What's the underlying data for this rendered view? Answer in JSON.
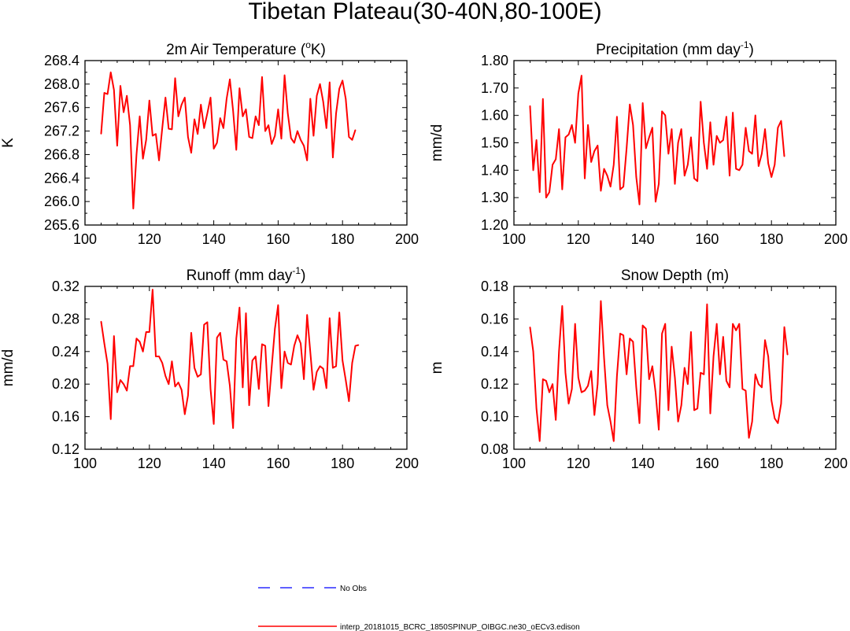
{
  "page": {
    "title": "Tibetan Plateau(30-40N,80-100E)"
  },
  "legend": {
    "entries": [
      {
        "label": "No Obs",
        "color": "#0000ff",
        "dash": true
      },
      {
        "label": "interp_20181015_BCRC_1850SPINUP_OIBGC.ne30_oECv3.edison",
        "color": "#ff0000",
        "dash": false
      }
    ]
  },
  "chart_data": [
    {
      "type": "line",
      "title": "2m Air Temperature (",
      "title_sup": "o",
      "title_tail": "K)",
      "ylabel": "K",
      "xlim": [
        100,
        200
      ],
      "ylim": [
        265.6,
        268.4
      ],
      "xticks": [
        100,
        120,
        140,
        160,
        180,
        200
      ],
      "yticks": [
        "265.6",
        "266.0",
        "266.4",
        "266.8",
        "267.2",
        "267.6",
        "268.0",
        "268.4"
      ],
      "x_start": 105,
      "color": "#ff0000",
      "values": [
        267.15,
        267.85,
        267.83,
        268.2,
        267.9,
        266.95,
        267.97,
        267.52,
        267.8,
        267.3,
        265.88,
        266.8,
        267.45,
        266.73,
        267.05,
        267.72,
        267.12,
        267.15,
        266.7,
        267.25,
        267.77,
        267.24,
        267.23,
        268.1,
        267.45,
        267.65,
        267.77,
        267.1,
        266.83,
        267.4,
        267.15,
        267.65,
        267.25,
        267.5,
        267.77,
        266.9,
        267.0,
        267.42,
        267.25,
        267.75,
        268.08,
        267.55,
        266.88,
        267.93,
        267.45,
        267.57,
        267.1,
        267.08,
        267.45,
        267.3,
        268.12,
        267.2,
        267.3,
        266.98,
        267.12,
        267.57,
        267.07,
        268.15,
        267.5,
        267.08,
        267.0,
        267.2,
        267.05,
        266.95,
        266.7,
        267.75,
        267.12,
        267.8,
        268.0,
        267.7,
        267.25,
        268.03,
        266.75,
        267.5,
        267.92,
        268.06,
        267.75,
        267.1,
        267.05,
        267.22
      ]
    },
    {
      "type": "line",
      "title": "Precipitation (mm day",
      "title_sup": "-1",
      "title_tail": ")",
      "ylabel": "mm/d",
      "xlim": [
        100,
        200
      ],
      "ylim": [
        1.2,
        1.8
      ],
      "xticks": [
        100,
        120,
        140,
        160,
        180,
        200
      ],
      "yticks": [
        "1.20",
        "1.30",
        "1.40",
        "1.50",
        "1.60",
        "1.70",
        "1.80"
      ],
      "x_start": 105,
      "color": "#ff0000",
      "values": [
        1.635,
        1.4,
        1.51,
        1.32,
        1.66,
        1.3,
        1.32,
        1.42,
        1.44,
        1.55,
        1.33,
        1.52,
        1.53,
        1.565,
        1.5,
        1.68,
        1.745,
        1.37,
        1.565,
        1.43,
        1.47,
        1.49,
        1.325,
        1.405,
        1.38,
        1.34,
        1.42,
        1.595,
        1.33,
        1.34,
        1.48,
        1.64,
        1.565,
        1.375,
        1.275,
        1.645,
        1.48,
        1.52,
        1.555,
        1.285,
        1.35,
        1.615,
        1.6,
        1.46,
        1.55,
        1.35,
        1.5,
        1.55,
        1.38,
        1.42,
        1.52,
        1.37,
        1.36,
        1.65,
        1.5,
        1.405,
        1.575,
        1.42,
        1.525,
        1.5,
        1.51,
        1.595,
        1.38,
        1.61,
        1.405,
        1.4,
        1.42,
        1.555,
        1.47,
        1.46,
        1.6,
        1.415,
        1.46,
        1.55,
        1.425,
        1.375,
        1.42,
        1.555,
        1.58,
        1.45
      ]
    },
    {
      "type": "line",
      "title": "Runoff (mm day",
      "title_sup": "-1",
      "title_tail": ")",
      "ylabel": "mm/d",
      "xlim": [
        100,
        200
      ],
      "ylim": [
        0.12,
        0.32
      ],
      "xticks": [
        100,
        120,
        140,
        160,
        180,
        200
      ],
      "yticks": [
        "0.12",
        "0.16",
        "0.20",
        "0.24",
        "0.28",
        "0.32"
      ],
      "x_start": 105,
      "color": "#ff0000",
      "values": [
        0.277,
        0.25,
        0.225,
        0.157,
        0.259,
        0.19,
        0.205,
        0.2,
        0.192,
        0.222,
        0.222,
        0.256,
        0.252,
        0.24,
        0.264,
        0.264,
        0.316,
        0.234,
        0.234,
        0.226,
        0.21,
        0.2,
        0.228,
        0.197,
        0.202,
        0.193,
        0.163,
        0.186,
        0.263,
        0.22,
        0.209,
        0.212,
        0.273,
        0.276,
        0.194,
        0.151,
        0.257,
        0.263,
        0.23,
        0.228,
        0.198,
        0.146,
        0.256,
        0.294,
        0.196,
        0.287,
        0.174,
        0.229,
        0.234,
        0.194,
        0.249,
        0.247,
        0.173,
        0.221,
        0.268,
        0.297,
        0.195,
        0.24,
        0.226,
        0.224,
        0.247,
        0.26,
        0.25,
        0.206,
        0.285,
        0.239,
        0.193,
        0.215,
        0.222,
        0.219,
        0.195,
        0.281,
        0.22,
        0.222,
        0.288,
        0.229,
        0.205,
        0.179,
        0.226,
        0.247,
        0.248
      ]
    },
    {
      "type": "line",
      "title": "Snow Depth (m)",
      "title_sup": "",
      "title_tail": "",
      "ylabel": "m",
      "xlim": [
        100,
        200
      ],
      "ylim": [
        0.08,
        0.18
      ],
      "xticks": [
        100,
        120,
        140,
        160,
        180,
        200
      ],
      "yticks": [
        "0.08",
        "0.10",
        "0.12",
        "0.14",
        "0.16",
        "0.18"
      ],
      "x_start": 105,
      "color": "#ff0000",
      "values": [
        0.155,
        0.14,
        0.105,
        0.085,
        0.123,
        0.122,
        0.115,
        0.12,
        0.098,
        0.14,
        0.168,
        0.127,
        0.108,
        0.117,
        0.157,
        0.124,
        0.115,
        0.116,
        0.119,
        0.128,
        0.101,
        0.12,
        0.171,
        0.136,
        0.107,
        0.097,
        0.085,
        0.125,
        0.151,
        0.15,
        0.126,
        0.148,
        0.146,
        0.118,
        0.096,
        0.156,
        0.154,
        0.123,
        0.131,
        0.115,
        0.092,
        0.151,
        0.157,
        0.104,
        0.143,
        0.124,
        0.097,
        0.107,
        0.13,
        0.12,
        0.152,
        0.104,
        0.105,
        0.127,
        0.126,
        0.169,
        0.102,
        0.137,
        0.157,
        0.126,
        0.149,
        0.122,
        0.118,
        0.157,
        0.153,
        0.157,
        0.117,
        0.116,
        0.087,
        0.097,
        0.126,
        0.12,
        0.118,
        0.147,
        0.137,
        0.11,
        0.099,
        0.096,
        0.108,
        0.155,
        0.138
      ]
    }
  ]
}
